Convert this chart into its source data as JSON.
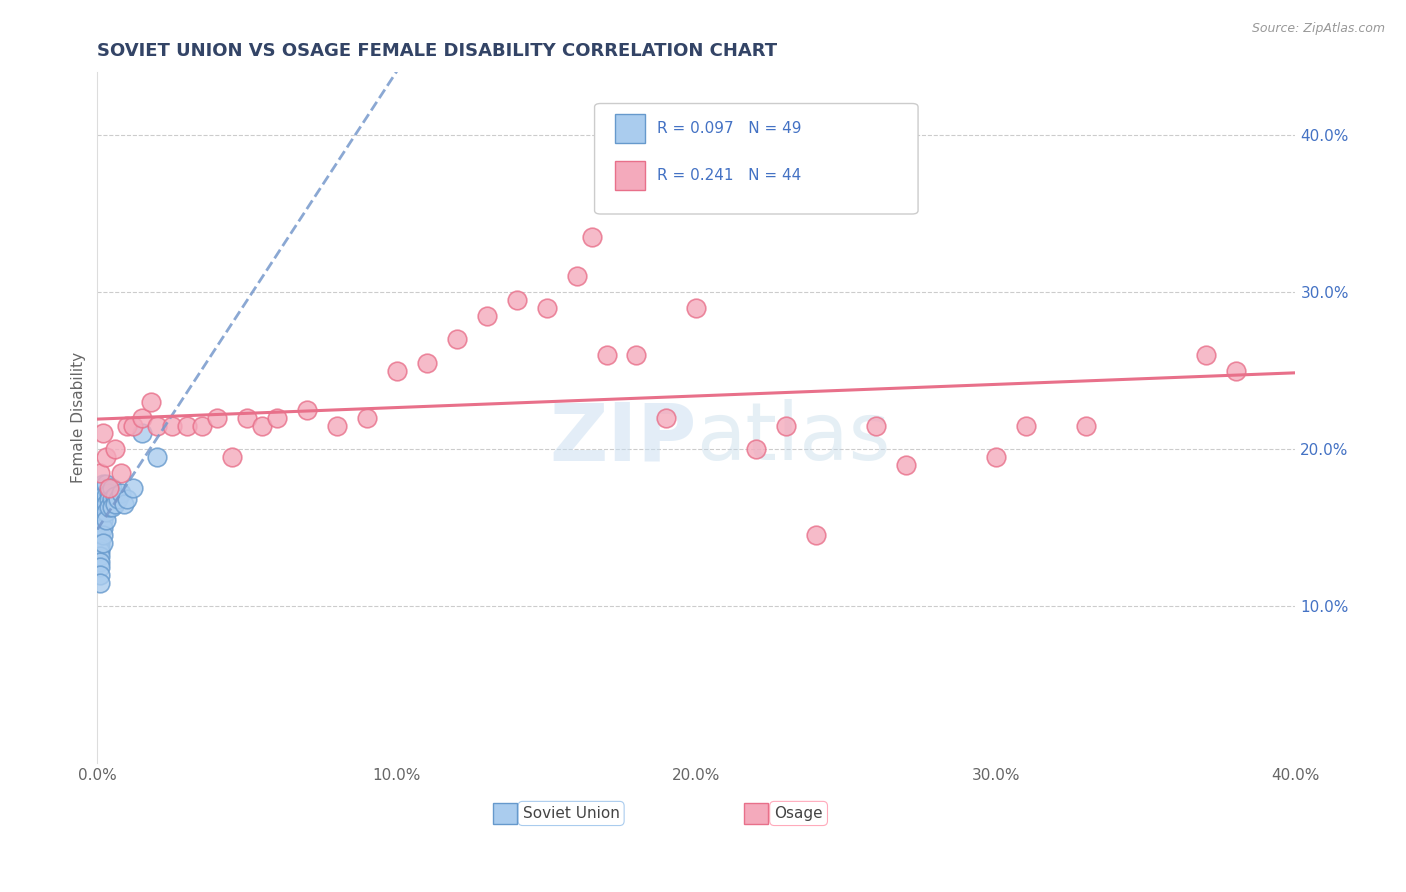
{
  "title": "SOVIET UNION VS OSAGE FEMALE DISABILITY CORRELATION CHART",
  "source_text": "Source: ZipAtlas.com",
  "ylabel": "Female Disability",
  "xlim": [
    0.0,
    0.4
  ],
  "ylim": [
    0.0,
    0.44
  ],
  "xtick_vals": [
    0.0,
    0.1,
    0.2,
    0.3,
    0.4
  ],
  "xtick_labels": [
    "0.0%",
    "10.0%",
    "20.0%",
    "30.0%",
    "40.0%"
  ],
  "ytick_vals_right": [
    0.1,
    0.2,
    0.3,
    0.4
  ],
  "ytick_labels_right": [
    "10.0%",
    "20.0%",
    "30.0%",
    "40.0%"
  ],
  "grid_color": "#cccccc",
  "background_color": "#ffffff",
  "watermark": "ZIPatlas",
  "legend_R1": "R = 0.097",
  "legend_N1": "N = 49",
  "legend_R2": "R = 0.241",
  "legend_N2": "N = 44",
  "color_soviet": "#aaccee",
  "color_osage": "#f4aabc",
  "edge_soviet": "#6699cc",
  "edge_osage": "#e8708a",
  "line_soviet_color": "#7799cc",
  "line_osage_color": "#e8708a",
  "legend_label1": "Soviet Union",
  "legend_label2": "Osage",
  "legend_color": "#4472c4",
  "title_color": "#334466",
  "ylabel_color": "#666666",
  "source_color": "#999999",
  "right_axis_color": "#4472c4",
  "soviet_x": [
    0.001,
    0.001,
    0.001,
    0.001,
    0.001,
    0.001,
    0.001,
    0.001,
    0.001,
    0.001,
    0.001,
    0.001,
    0.001,
    0.001,
    0.001,
    0.001,
    0.001,
    0.001,
    0.001,
    0.001,
    0.002,
    0.002,
    0.002,
    0.002,
    0.002,
    0.002,
    0.002,
    0.002,
    0.002,
    0.003,
    0.003,
    0.003,
    0.003,
    0.003,
    0.004,
    0.004,
    0.004,
    0.005,
    0.005,
    0.005,
    0.006,
    0.006,
    0.007,
    0.008,
    0.009,
    0.01,
    0.012,
    0.015,
    0.02
  ],
  "soviet_y": [
    0.175,
    0.172,
    0.168,
    0.165,
    0.163,
    0.16,
    0.157,
    0.155,
    0.152,
    0.148,
    0.145,
    0.142,
    0.14,
    0.137,
    0.135,
    0.132,
    0.128,
    0.125,
    0.12,
    0.115,
    0.178,
    0.175,
    0.17,
    0.165,
    0.16,
    0.155,
    0.15,
    0.145,
    0.14,
    0.178,
    0.17,
    0.165,
    0.16,
    0.155,
    0.172,
    0.168,
    0.163,
    0.175,
    0.168,
    0.163,
    0.17,
    0.165,
    0.168,
    0.172,
    0.165,
    0.168,
    0.175,
    0.21,
    0.195
  ],
  "osage_x": [
    0.001,
    0.002,
    0.003,
    0.004,
    0.006,
    0.008,
    0.01,
    0.012,
    0.015,
    0.018,
    0.02,
    0.025,
    0.03,
    0.035,
    0.04,
    0.045,
    0.05,
    0.055,
    0.06,
    0.07,
    0.08,
    0.09,
    0.1,
    0.11,
    0.12,
    0.13,
    0.14,
    0.15,
    0.16,
    0.165,
    0.17,
    0.18,
    0.19,
    0.2,
    0.22,
    0.23,
    0.24,
    0.26,
    0.27,
    0.3,
    0.31,
    0.33,
    0.37,
    0.38
  ],
  "osage_y": [
    0.185,
    0.21,
    0.195,
    0.175,
    0.2,
    0.185,
    0.215,
    0.215,
    0.22,
    0.23,
    0.215,
    0.215,
    0.215,
    0.215,
    0.22,
    0.195,
    0.22,
    0.215,
    0.22,
    0.225,
    0.215,
    0.22,
    0.25,
    0.255,
    0.27,
    0.285,
    0.295,
    0.29,
    0.31,
    0.335,
    0.26,
    0.26,
    0.22,
    0.29,
    0.2,
    0.215,
    0.145,
    0.215,
    0.19,
    0.195,
    0.215,
    0.215,
    0.26,
    0.25
  ]
}
